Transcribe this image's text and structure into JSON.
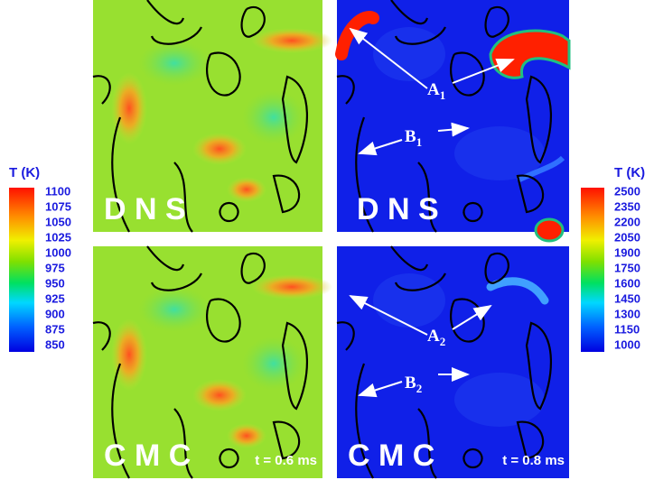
{
  "colorbars": [
    {
      "title": "T (K)",
      "labels": [
        1100,
        1075,
        1050,
        1025,
        1000,
        975,
        950,
        925,
        900,
        875,
        850
      ]
    },
    {
      "title": "T (K)",
      "labels": [
        2500,
        2350,
        2200,
        2050,
        1900,
        1750,
        1600,
        1450,
        1300,
        1150,
        1000
      ]
    }
  ],
  "panels": [
    {
      "label": "D N S"
    },
    {
      "label": "D N S",
      "annotations": [
        {
          "main": "A",
          "sub": "1"
        },
        {
          "main": "B",
          "sub": "1"
        }
      ]
    },
    {
      "label": "C M C",
      "time": "t = 0.6 ms"
    },
    {
      "label": "C M C",
      "time": "t = 0.8 ms",
      "annotations": [
        {
          "main": "A",
          "sub": "2"
        },
        {
          "main": "B",
          "sub": "2"
        }
      ]
    }
  ]
}
